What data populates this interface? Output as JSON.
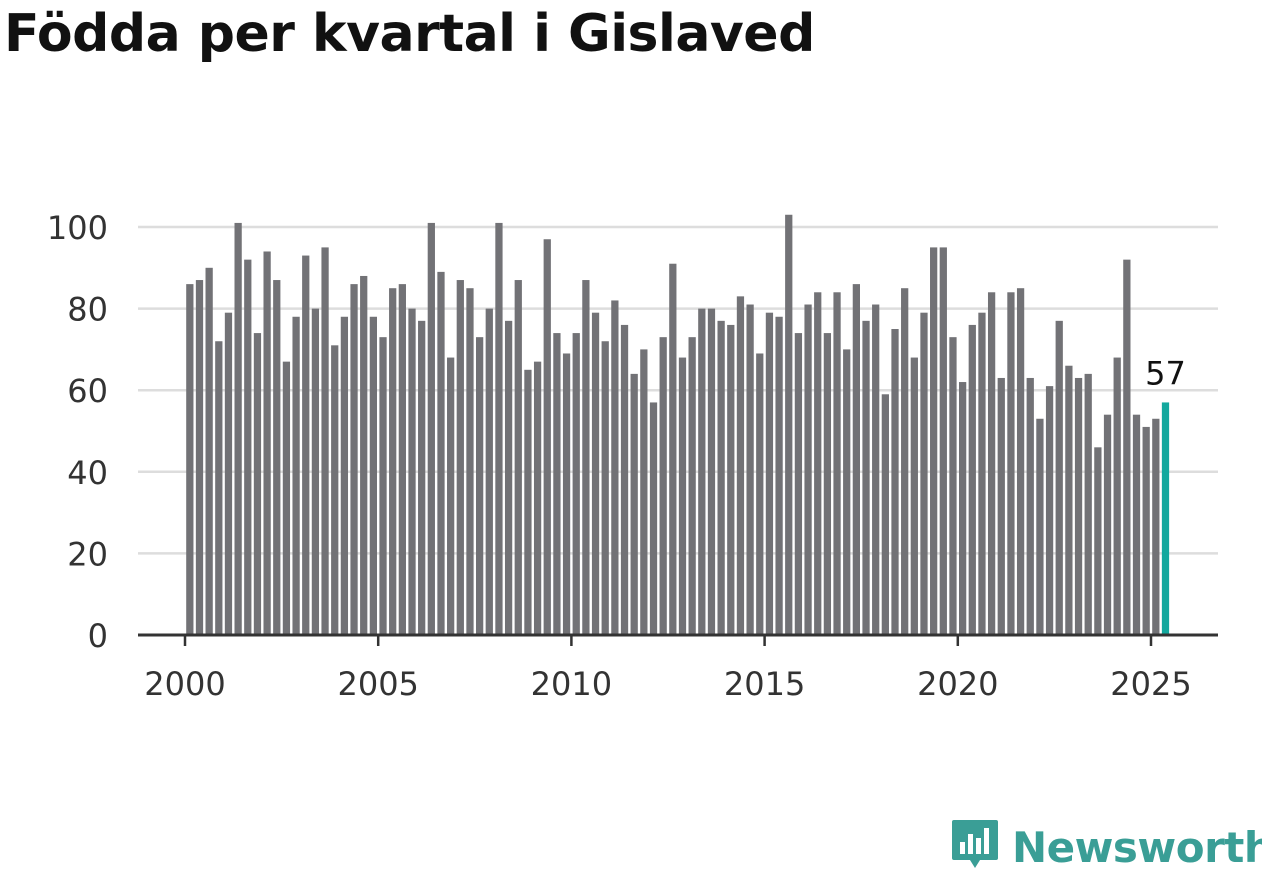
{
  "chart_data": {
    "type": "bar",
    "title": "Födda per kvartal i Gislaved",
    "x_start_year": 2000,
    "periods_per_year": 4,
    "x_ticks": [
      2000,
      2005,
      2010,
      2015,
      2020,
      2025
    ],
    "y_ticks": [
      0,
      20,
      40,
      60,
      80,
      100
    ],
    "ylim": [
      0,
      105
    ],
    "grid": true,
    "values": [
      86,
      87,
      90,
      72,
      79,
      101,
      92,
      74,
      94,
      87,
      67,
      78,
      93,
      80,
      95,
      71,
      78,
      86,
      88,
      78,
      73,
      85,
      86,
      80,
      77,
      101,
      89,
      68,
      87,
      85,
      73,
      80,
      101,
      77,
      87,
      65,
      67,
      97,
      74,
      69,
      74,
      87,
      79,
      72,
      82,
      76,
      64,
      70,
      57,
      73,
      91,
      68,
      73,
      80,
      80,
      77,
      76,
      83,
      81,
      69,
      79,
      78,
      103,
      74,
      81,
      84,
      74,
      84,
      70,
      86,
      77,
      81,
      59,
      75,
      85,
      68,
      79,
      95,
      95,
      73,
      62,
      76,
      79,
      84,
      63,
      84,
      85,
      63,
      53,
      61,
      77,
      66,
      63,
      64,
      46,
      54,
      68,
      92,
      54,
      51,
      53,
      57
    ],
    "highlight_index": 101,
    "highlight_label": "57",
    "colors": {
      "bar": "#727276",
      "highlight": "#13a89e",
      "grid": "#dddddd",
      "axis": "#333333"
    }
  },
  "brand": {
    "name": "Newsworthy",
    "icon": "newsworthy-logo-icon",
    "color": "#3a9e96"
  }
}
